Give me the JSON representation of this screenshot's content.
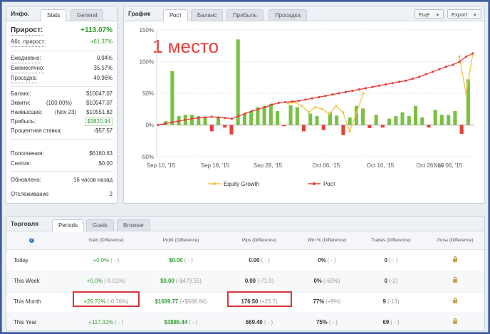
{
  "info": {
    "title": "Инфо.",
    "tabs": [
      "Stats",
      "General"
    ],
    "growth": {
      "label": "Прирост:",
      "value": "+113.07%"
    },
    "abs_growth": {
      "label": "Абс. прирост:",
      "value": "+61.37%"
    },
    "daily": {
      "label": "Ежедневно:",
      "value": "0.94%"
    },
    "monthly": {
      "label": "Ежемесячно:",
      "value": "35.57%"
    },
    "drawdown": {
      "label": "Просадка:",
      "value": "49.96%"
    },
    "balance": {
      "label": "Баланс:",
      "value": "$10047.07"
    },
    "equity": {
      "label": "Эквити:",
      "pct": "(100.00%)",
      "value": "$10047.07"
    },
    "highest": {
      "label": "Наивысшее:",
      "date": "(Nov 23)",
      "value": "$10551.82"
    },
    "profit": {
      "label": "Прибыль:",
      "value": "$3820.94"
    },
    "interest": {
      "label": "Процентная ставка:",
      "value": "-$57.57"
    },
    "deposits": {
      "label": "Пополнения:",
      "value": "$6160.63"
    },
    "withdrawals": {
      "label": "Снятия:",
      "value": "$0.00"
    },
    "updated": {
      "label": "Обновлено:",
      "value": "16 часов назад"
    },
    "tracking": {
      "label": "Отслеживание",
      "value": "2"
    }
  },
  "graph": {
    "title": "График",
    "tabs": [
      "Рост",
      "Баланс",
      "Прибыль",
      "Просадка"
    ],
    "more_label": "Ещё",
    "export_label": "Export",
    "annotation": "1 место",
    "legend": [
      "Equity Growth",
      "Рост"
    ]
  },
  "chart_data": {
    "type": "bar",
    "x_tick_labels": [
      "Sep 10, '15",
      "Sep 18, '15",
      "Sep 28, '15",
      "Oct 06, '15",
      "Oct 16, '15",
      "Oct 26, '15",
      "Nov 06, '15"
    ],
    "y_tick_labels": [
      "150%",
      "100%",
      "50%",
      "0%",
      "-50%"
    ],
    "ylim": [
      -50,
      150
    ],
    "bar_values": [
      6,
      85,
      14,
      16,
      16,
      14,
      12,
      -10,
      12,
      -4,
      -15,
      135,
      18,
      22,
      28,
      30,
      33,
      22,
      -2,
      31,
      28,
      -10,
      18,
      14,
      -8,
      20,
      15,
      -16,
      12,
      30,
      26,
      -5,
      16,
      -4,
      10,
      14,
      20,
      14,
      30,
      12,
      -4,
      24,
      16,
      16,
      22,
      -14,
      72
    ],
    "series": [
      {
        "name": "Рост",
        "values": [
          0,
          2,
          4,
          6,
          8,
          10,
          11,
          12,
          13,
          12,
          11,
          10,
          14,
          18,
          22,
          25,
          28,
          32,
          35,
          36,
          37,
          38,
          40,
          42,
          44,
          46,
          48,
          50,
          52,
          54,
          56,
          58,
          60,
          62,
          64,
          66,
          68,
          70,
          73,
          76,
          80,
          84,
          88,
          92,
          95,
          100,
          108,
          113
        ]
      },
      {
        "name": "Equity Growth",
        "values": [
          null,
          null,
          null,
          null,
          null,
          null,
          null,
          null,
          null,
          null,
          null,
          null,
          null,
          null,
          null,
          null,
          null,
          null,
          null,
          34,
          36,
          30,
          20,
          28,
          25,
          18,
          30,
          20,
          -10,
          20,
          50,
          null,
          null,
          null,
          null,
          null,
          null,
          null,
          null,
          null,
          null,
          null,
          null,
          null,
          108,
          50,
          113
        ]
      }
    ],
    "colors": {
      "bar_pos": "#7ac143",
      "bar_neg": "#e8403a",
      "line_growth": "#e8403a",
      "line_equity": "#f5c243"
    },
    "grid": true,
    "legend_position": "bottom"
  },
  "trading": {
    "title": "Торговля",
    "tabs": [
      "Periods",
      "Goals",
      "Browser"
    ],
    "columns": [
      "",
      "Gain (Difference)",
      "Profit (Difference)",
      "Pips (Difference)",
      "Win % (Difference)",
      "Trades (Difference)",
      "Лоты (Difference)"
    ],
    "rows": [
      {
        "period": "Today",
        "gain": "+0.0%",
        "gain_diff": "( - )",
        "profit": "$0.00",
        "profit_diff": "( - )",
        "pips": "0.00",
        "pips_diff": "( - )",
        "win": "0%",
        "win_diff": "( - )",
        "trades": "0",
        "trades_diff": "( - )"
      },
      {
        "period": "This Week",
        "gain": "+0.0%",
        "gain_diff": "(-5.01%)",
        "profit": "$0.00",
        "profit_diff": "(-$479.55)",
        "pips": "0.00",
        "pips_diff": "(-71.0)",
        "win": "0%",
        "win_diff": "(-50%)",
        "trades": "0",
        "trades_diff": "(-2)"
      },
      {
        "period": "This Month",
        "gain": "+26.72%",
        "gain_diff": "(-0.76%)",
        "profit": "$1699.77",
        "profit_diff": "(+$568.94)",
        "pips": "176.50",
        "pips_diff": "(+23.7)",
        "win": "77%",
        "win_diff": "(+9%)",
        "trades": "9",
        "trades_diff": "(-13)"
      },
      {
        "period": "This Year",
        "gain": "+117.31%",
        "gain_diff": "( - )",
        "profit": "$3886.44",
        "profit_diff": "( - )",
        "pips": "669.40",
        "pips_diff": "( - )",
        "win": "75%",
        "win_diff": "( - )",
        "trades": "69",
        "trades_diff": "( - )"
      }
    ]
  }
}
